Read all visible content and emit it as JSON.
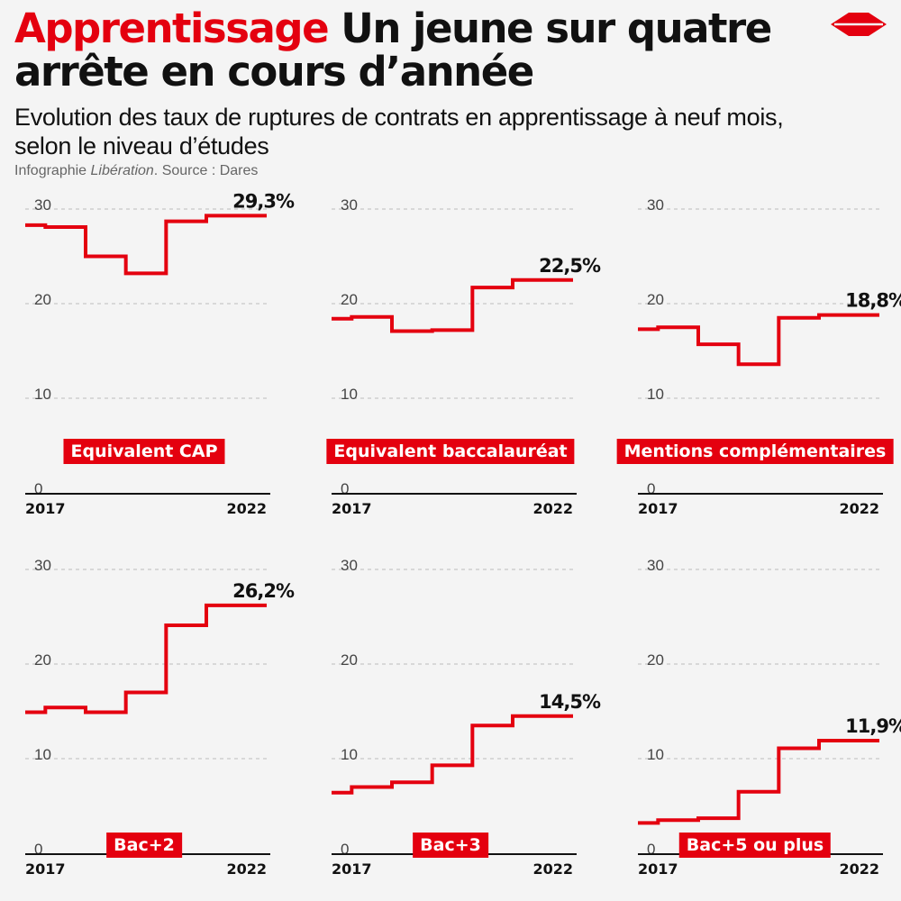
{
  "header": {
    "title_accent": "Apprentissage",
    "title_rest": " Un jeune sur quatre arrête en cours d’année",
    "subtitle": "Evolution des taux de ruptures de contrats en apprentissage à neuf mois, selon le niveau d’études",
    "credit_prefix": "Infographie ",
    "credit_outlet": "Libération",
    "credit_suffix": ". Source : Dares"
  },
  "colors": {
    "accent": "#e4000f",
    "grid": "#bbbbbb",
    "background": "#f4f4f4"
  },
  "logo": {
    "icon": "liberation-logo-icon"
  },
  "chart_data": [
    {
      "type": "line",
      "step": true,
      "title": "Equivalent CAP",
      "x": [
        2017,
        2018,
        2019,
        2020,
        2021,
        2022
      ],
      "values": [
        28.1,
        25.0,
        23.2,
        28.7,
        29.3,
        29.3
      ],
      "start_value": 28.3,
      "last_label": "29,3%",
      "yticks": [
        "0",
        "10",
        "20",
        "30"
      ],
      "ylim": [
        0,
        30
      ],
      "xlabels": [
        "2017",
        "2022"
      ]
    },
    {
      "type": "line",
      "step": true,
      "title": "Equivalent baccalauréat",
      "x": [
        2017,
        2018,
        2019,
        2020,
        2021,
        2022
      ],
      "values": [
        18.6,
        17.1,
        17.2,
        21.7,
        22.5,
        22.5
      ],
      "start_value": 18.4,
      "last_label": "22,5%",
      "yticks": [
        "0",
        "10",
        "20",
        "30"
      ],
      "ylim": [
        0,
        30
      ],
      "xlabels": [
        "2017",
        "2022"
      ]
    },
    {
      "type": "line",
      "step": true,
      "title": "Mentions complémentaires",
      "x": [
        2017,
        2018,
        2019,
        2020,
        2021,
        2022
      ],
      "values": [
        17.5,
        15.7,
        13.6,
        18.5,
        18.8,
        18.8
      ],
      "start_value": 17.3,
      "last_label": "18,8%",
      "yticks": [
        "0",
        "10",
        "20",
        "30"
      ],
      "ylim": [
        0,
        30
      ],
      "xlabels": [
        "2017",
        "2022"
      ]
    },
    {
      "type": "line",
      "step": true,
      "title": "Bac+2",
      "x": [
        2017,
        2018,
        2019,
        2020,
        2021,
        2022
      ],
      "values": [
        15.4,
        14.9,
        17.0,
        24.1,
        26.2,
        26.2
      ],
      "start_value": 14.9,
      "last_label": "26,2%",
      "yticks": [
        "0",
        "10",
        "20",
        "30"
      ],
      "ylim": [
        0,
        30
      ],
      "xlabels": [
        "2017",
        "2022"
      ]
    },
    {
      "type": "line",
      "step": true,
      "title": "Bac+3",
      "x": [
        2017,
        2018,
        2019,
        2020,
        2021,
        2022
      ],
      "values": [
        7.0,
        7.5,
        9.3,
        13.5,
        14.5,
        14.5
      ],
      "start_value": 6.4,
      "last_label": "14,5%",
      "yticks": [
        "0",
        "10",
        "20",
        "30"
      ],
      "ylim": [
        0,
        30
      ],
      "xlabels": [
        "2017",
        "2022"
      ]
    },
    {
      "type": "line",
      "step": true,
      "title": "Bac+5 ou plus",
      "x": [
        2017,
        2018,
        2019,
        2020,
        2021,
        2022
      ],
      "values": [
        3.5,
        3.7,
        6.5,
        11.1,
        11.9,
        11.9
      ],
      "start_value": 3.2,
      "last_label": "11,9%",
      "yticks": [
        "0",
        "10",
        "20",
        "30"
      ],
      "ylim": [
        0,
        30
      ],
      "xlabels": [
        "2017",
        "2022"
      ]
    }
  ]
}
